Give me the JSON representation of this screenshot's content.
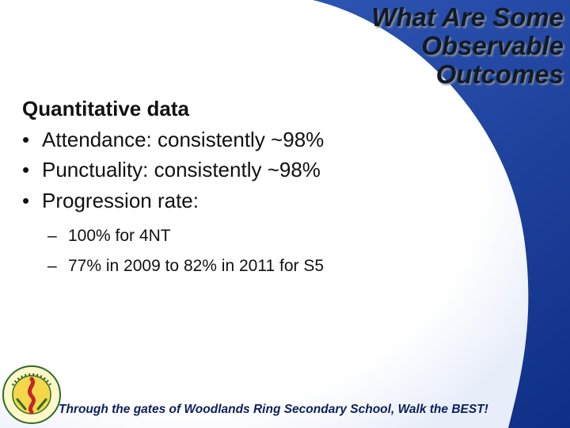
{
  "slide": {
    "title_lines": [
      "What Are Some",
      "Observable",
      "Outcomes"
    ],
    "heading": "Quantitative data",
    "bullets": [
      "Attendance: consistently ~98%",
      "Punctuality: consistently ~98%",
      "Progression rate:"
    ],
    "sub_bullets": [
      "100% for 4NT",
      "77% in 2009 to 82% in 2011 for S5"
    ],
    "bullet_glyph": "•",
    "dash_glyph": "–",
    "footer": "Through the gates of Woodlands Ring Secondary School, Walk the BEST!",
    "logo_text": "WOODLANDS RING SECONDARY SCHOOL"
  },
  "colors": {
    "background_blue": "#1f47a8",
    "panel_white": "#ffffff",
    "footer_text": "#0b1f5c",
    "body_text": "#111111"
  },
  "icons": [
    "school-logo-icon"
  ]
}
